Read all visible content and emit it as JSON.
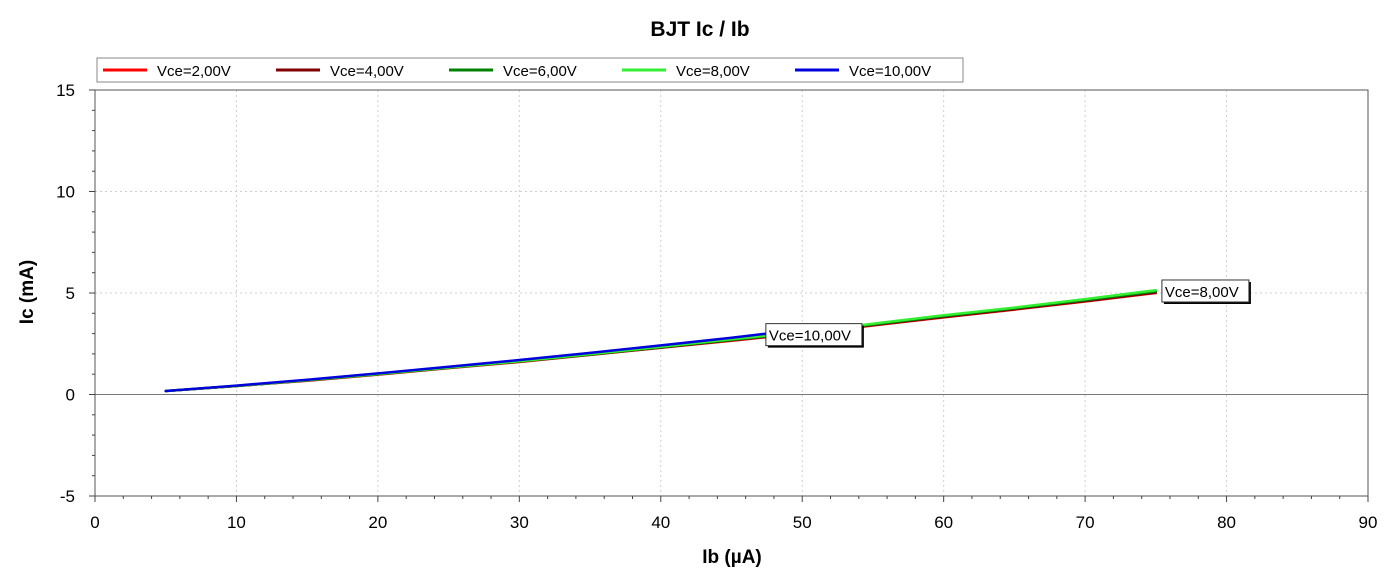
{
  "chart_data": {
    "type": "line",
    "title": "BJT Ic / Ib",
    "xlabel": "Ib (µA)",
    "ylabel": "Ic (mA)",
    "xlim": [
      0,
      90
    ],
    "ylim": [
      -5,
      15
    ],
    "xticks": [
      0,
      10,
      20,
      30,
      40,
      50,
      60,
      70,
      80,
      90
    ],
    "yticks": [
      -5,
      0,
      5,
      10,
      15
    ],
    "grid": true,
    "legend_position": "top-left",
    "series": [
      {
        "name": "Vce=2,00V",
        "color": "#ff0000",
        "x": [
          5,
          10,
          15,
          20,
          25,
          30,
          35,
          40,
          45,
          50,
          55,
          60,
          65,
          70,
          75
        ],
        "y": [
          0.17,
          0.42,
          0.68,
          0.98,
          1.3,
          1.6,
          1.95,
          2.3,
          2.65,
          3.0,
          3.4,
          3.8,
          4.18,
          4.58,
          5.0
        ]
      },
      {
        "name": "Vce=4,00V",
        "color": "#800000",
        "x": [
          5,
          10,
          15,
          20,
          25,
          30,
          35,
          40,
          45,
          50,
          55,
          60,
          65,
          70,
          75
        ],
        "y": [
          0.17,
          0.42,
          0.69,
          0.99,
          1.31,
          1.62,
          1.96,
          2.31,
          2.67,
          3.02,
          3.42,
          3.82,
          4.2,
          4.6,
          5.02
        ]
      },
      {
        "name": "Vce=6,00V",
        "color": "#008000",
        "x": [
          5,
          10,
          15,
          20,
          25,
          30,
          35,
          40,
          45,
          50,
          55,
          60,
          65,
          70,
          75
        ],
        "y": [
          0.17,
          0.42,
          0.7,
          1.0,
          1.32,
          1.63,
          1.97,
          2.33,
          2.69,
          3.05,
          3.45,
          3.86,
          4.24,
          4.65,
          5.08
        ]
      },
      {
        "name": "Vce=8,00V",
        "color": "#33ee33",
        "x": [
          5,
          10,
          15,
          20,
          25,
          30,
          35,
          40,
          45,
          50,
          55,
          60,
          65,
          70,
          75
        ],
        "y": [
          0.17,
          0.43,
          0.71,
          1.01,
          1.33,
          1.64,
          1.99,
          2.35,
          2.72,
          3.08,
          3.49,
          3.9,
          4.28,
          4.7,
          5.14
        ]
      },
      {
        "name": "Vce=10,00V",
        "color": "#0000dd",
        "x": [
          5,
          10,
          15,
          20,
          25,
          30,
          35,
          40,
          45,
          47.5
        ],
        "y": [
          0.17,
          0.44,
          0.73,
          1.04,
          1.37,
          1.7,
          2.05,
          2.42,
          2.8,
          3.0
        ]
      }
    ],
    "annotations": [
      {
        "text": "Vce=10,00V",
        "x": 47.5,
        "y": 2.9
      },
      {
        "text": "Vce=8,00V",
        "x": 75.5,
        "y": 5.05
      }
    ]
  }
}
